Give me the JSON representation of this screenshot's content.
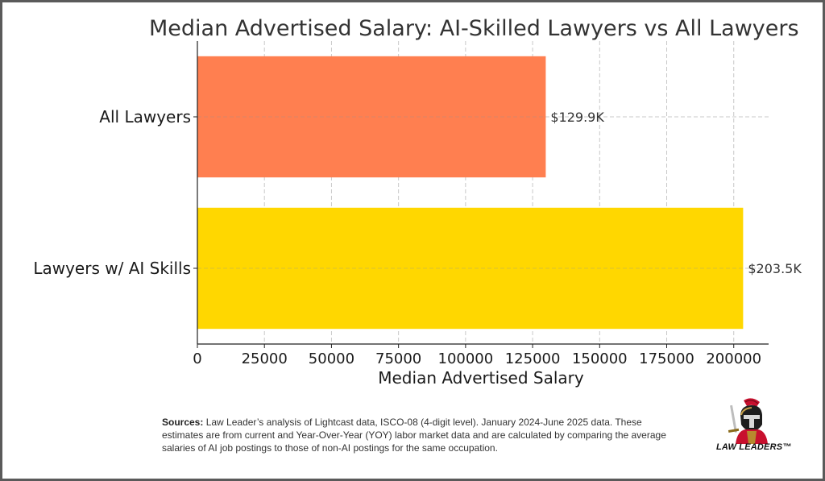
{
  "chart_data": {
    "type": "bar",
    "orientation": "horizontal",
    "title": "Median Advertised Salary: AI-Skilled Lawyers vs All Lawyers",
    "xlabel": "Median Advertised Salary",
    "ylabel": "",
    "categories": [
      "All Lawyers",
      "Lawyers w/ AI Skills"
    ],
    "values": [
      129900,
      203500
    ],
    "data_labels": [
      "$129.9K",
      "$203.5K"
    ],
    "colors": [
      "#ff7f50",
      "#ffd700"
    ],
    "xlim": [
      0,
      213000
    ],
    "xticks": [
      0,
      25000,
      50000,
      75000,
      100000,
      125000,
      150000,
      175000,
      200000
    ],
    "grid": true,
    "legend": "none"
  },
  "sources": {
    "label": "Sources:",
    "text": "Law Leader’s analysis of Lightcast data, ISCO-08 (4-digit level). January 2024-June 2025 data. These estimates are from current and Year-Over-Year (YOY) labor market data and are calculated by comparing the average salaries of AI job postings to those of non-AI postings for the same occupation."
  },
  "logo": {
    "icon": "spartan-warrior-icon",
    "text": "LAW LEADERS™"
  }
}
